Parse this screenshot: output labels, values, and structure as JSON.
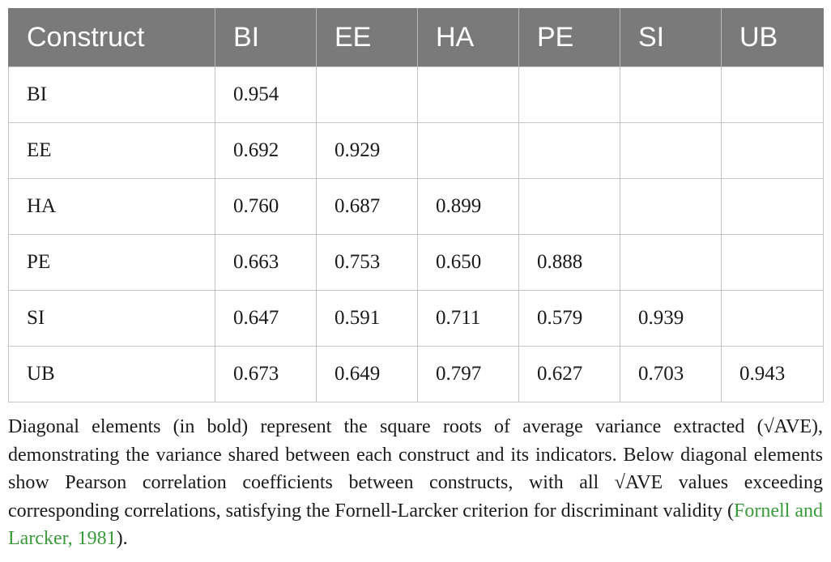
{
  "table": {
    "headers": [
      "Construct",
      "BI",
      "EE",
      "HA",
      "PE",
      "SI",
      "UB"
    ],
    "rows": [
      [
        "BI",
        "0.954",
        "",
        "",
        "",
        "",
        ""
      ],
      [
        "EE",
        "0.692",
        "0.929",
        "",
        "",
        "",
        ""
      ],
      [
        "HA",
        "0.760",
        "0.687",
        "0.899",
        "",
        "",
        ""
      ],
      [
        "PE",
        "0.663",
        "0.753",
        "0.650",
        "0.888",
        "",
        ""
      ],
      [
        "SI",
        "0.647",
        "0.591",
        "0.711",
        "0.579",
        "0.939",
        ""
      ],
      [
        "UB",
        "0.673",
        "0.649",
        "0.797",
        "0.627",
        "0.703",
        "0.943"
      ]
    ]
  },
  "note": {
    "text": "Diagonal elements (in bold) represent the square roots of average variance extracted (√AVE), demonstrating the variance shared between each construct and its indicators. Below diagonal elements show Pearson correlation coefficients between constructs, with all √AVE values exceeding corresponding correlations, satisfying the Fornell-Larcker criterion for discriminant validity (",
    "citation": "Fornell and Larcker, 1981",
    "end": ")."
  },
  "colors": {
    "header_bg": "#7a7a7a",
    "header_text": "#ffffff",
    "citation": "#3a9a3a",
    "grid": "#c4c4c4"
  }
}
